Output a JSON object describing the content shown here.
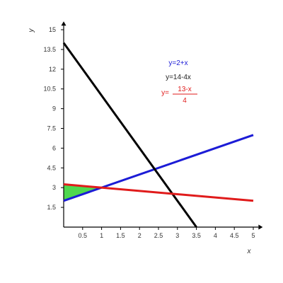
{
  "chart_data": {
    "type": "line",
    "xlabel": "x",
    "ylabel": "y",
    "xlim": [
      0,
      5.1
    ],
    "ylim": [
      0,
      15.2
    ],
    "x_ticks": [
      {
        "value": 0.5,
        "label": "0.5"
      },
      {
        "value": 1,
        "label": "1"
      },
      {
        "value": 1.5,
        "label": "1.5"
      },
      {
        "value": 2,
        "label": "2"
      },
      {
        "value": 2.5,
        "label": "2.5"
      },
      {
        "value": 3,
        "label": "3"
      },
      {
        "value": 3.5,
        "label": "3.5"
      },
      {
        "value": 4,
        "label": "4"
      },
      {
        "value": 4.5,
        "label": "4.5"
      },
      {
        "value": 5,
        "label": "5"
      }
    ],
    "y_ticks": [
      {
        "value": 1.5,
        "label": "1.5"
      },
      {
        "value": 3,
        "label": "3"
      },
      {
        "value": 4.5,
        "label": "4.5"
      },
      {
        "value": 6,
        "label": "6"
      },
      {
        "value": 7.5,
        "label": "7.5"
      },
      {
        "value": 9,
        "label": "9"
      },
      {
        "value": 10.5,
        "label": "10.5"
      },
      {
        "value": 12,
        "label": "12"
      },
      {
        "value": 13.5,
        "label": "13.5"
      },
      {
        "value": 15,
        "label": "15"
      }
    ],
    "grid": false,
    "series": [
      {
        "x": [
          0,
          5
        ],
        "y": [
          2,
          7
        ],
        "color": "#1c1cd6"
      },
      {
        "x": [
          0,
          3.5
        ],
        "y": [
          14,
          0
        ],
        "color": "#000000"
      },
      {
        "x": [
          0,
          5
        ],
        "y": [
          3.25,
          2
        ],
        "color": "#e01b1b"
      }
    ],
    "shaded_region": {
      "x": [
        0,
        0,
        1
      ],
      "y": [
        2,
        3.25,
        3
      ],
      "color": "#4fd84f"
    },
    "legend": [
      {
        "text": "y=2+x",
        "color": "#1c1cd6"
      },
      {
        "text": "y=14-4x",
        "color": "#222222"
      },
      {
        "prefix": "y=",
        "numerator": "13-x",
        "denominator": "4",
        "color": "#e01b1b"
      }
    ]
  }
}
